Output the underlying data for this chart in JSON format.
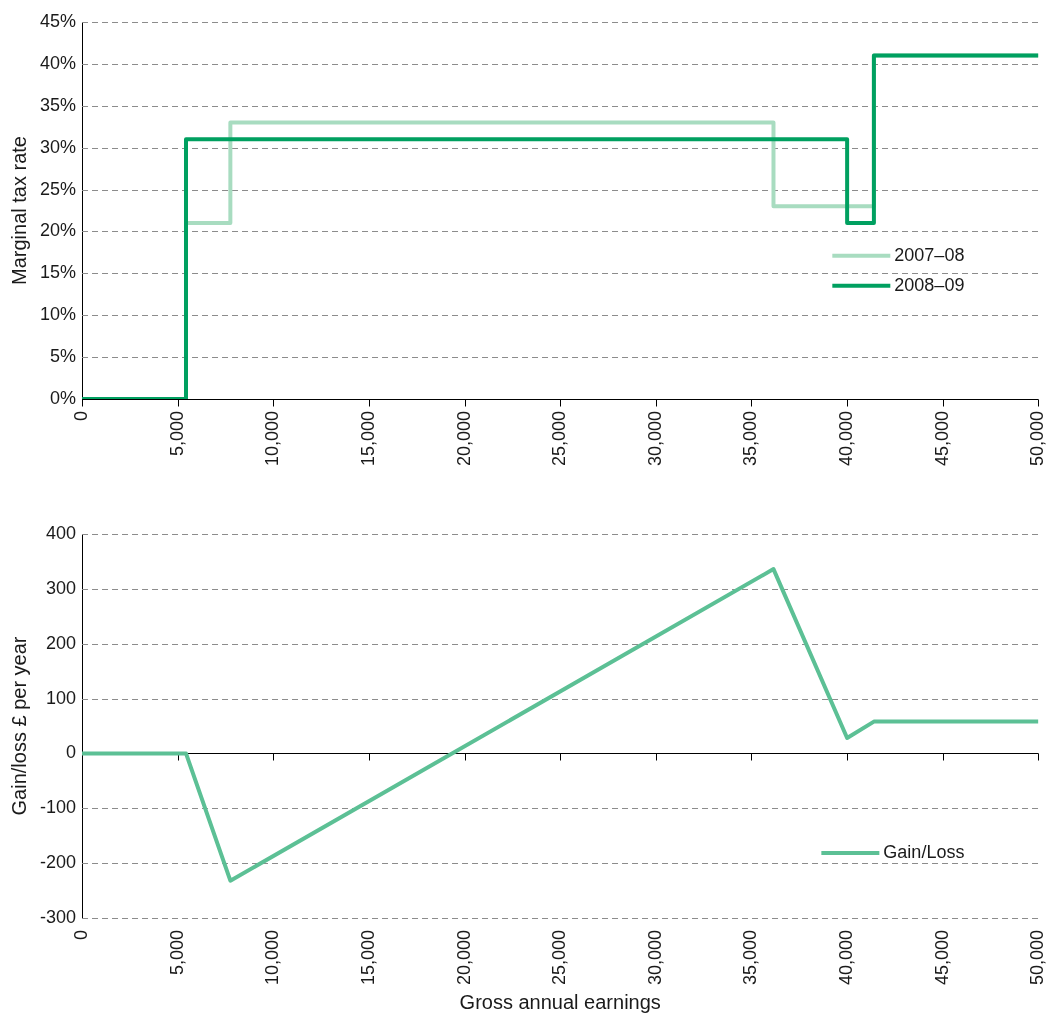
{
  "chart_data": [
    {
      "type": "step",
      "ylabel": "Marginal tax rate",
      "series": [
        {
          "name": "2007–08",
          "color": "#a8dcc0",
          "x": [
            0,
            5435,
            7755,
            36150,
            41400,
            50000
          ],
          "values": [
            0,
            21,
            33,
            23,
            41,
            41
          ]
        },
        {
          "name": "2008–09",
          "color": "#00a060",
          "x": [
            0,
            5435,
            40000,
            41400,
            50000
          ],
          "values": [
            0,
            31,
            21,
            41,
            41
          ]
        }
      ],
      "xlim": [
        0,
        50000
      ],
      "xticks": [
        0,
        {
          "value": 5000,
          "label": "5,000"
        },
        {
          "value": 10000,
          "label": "10,000"
        },
        {
          "value": 15000,
          "label": "15,000"
        },
        {
          "value": 20000,
          "label": "20,000"
        },
        {
          "value": 25000,
          "label": "25,000"
        },
        {
          "value": 30000,
          "label": "30,000"
        },
        {
          "value": 35000,
          "label": "35,000"
        },
        {
          "value": 40000,
          "label": "40,000"
        },
        {
          "value": 45000,
          "label": "45,000"
        },
        {
          "value": 50000,
          "label": "50,000"
        }
      ],
      "ylim": [
        0,
        45
      ],
      "yticks": [
        {
          "value": 0,
          "label": "0%"
        },
        {
          "value": 5,
          "label": "5%"
        },
        {
          "value": 10,
          "label": "10%"
        },
        {
          "value": 15,
          "label": "15%"
        },
        {
          "value": 20,
          "label": "20%"
        },
        {
          "value": 25,
          "label": "25%"
        },
        {
          "value": 30,
          "label": "30%"
        },
        {
          "value": 35,
          "label": "35%"
        },
        {
          "value": 40,
          "label": "40%"
        },
        {
          "value": 45,
          "label": "45%"
        }
      ],
      "grid": "y",
      "legend": "right",
      "marker": "none"
    },
    {
      "type": "line",
      "xlabel": "Gross annual earnings",
      "ylabel": "Gain/loss £ per year",
      "series": [
        {
          "name": "Gain/Loss",
          "color": "#5cc095",
          "x": [
            0,
            5435,
            7755,
            36150,
            40000,
            41400,
            50000
          ],
          "values": [
            0,
            0,
            -232,
            336,
            28,
            58,
            58
          ]
        }
      ],
      "xlim": [
        0,
        50000
      ],
      "xticks": [
        0,
        {
          "value": 5000,
          "label": "5,000"
        },
        {
          "value": 10000,
          "label": "10,000"
        },
        {
          "value": 15000,
          "label": "15,000"
        },
        {
          "value": 20000,
          "label": "20,000"
        },
        {
          "value": 25000,
          "label": "25,000"
        },
        {
          "value": 30000,
          "label": "30,000"
        },
        {
          "value": 35000,
          "label": "35,000"
        },
        {
          "value": 40000,
          "label": "40,000"
        },
        {
          "value": 45000,
          "label": "45,000"
        },
        {
          "value": 50000,
          "label": "50,000"
        }
      ],
      "ylim": [
        -300,
        400
      ],
      "yticks": [
        -300,
        -200,
        -100,
        0,
        100,
        200,
        300,
        400
      ],
      "grid": "y",
      "legend": "bottom right",
      "marker": "none"
    }
  ]
}
